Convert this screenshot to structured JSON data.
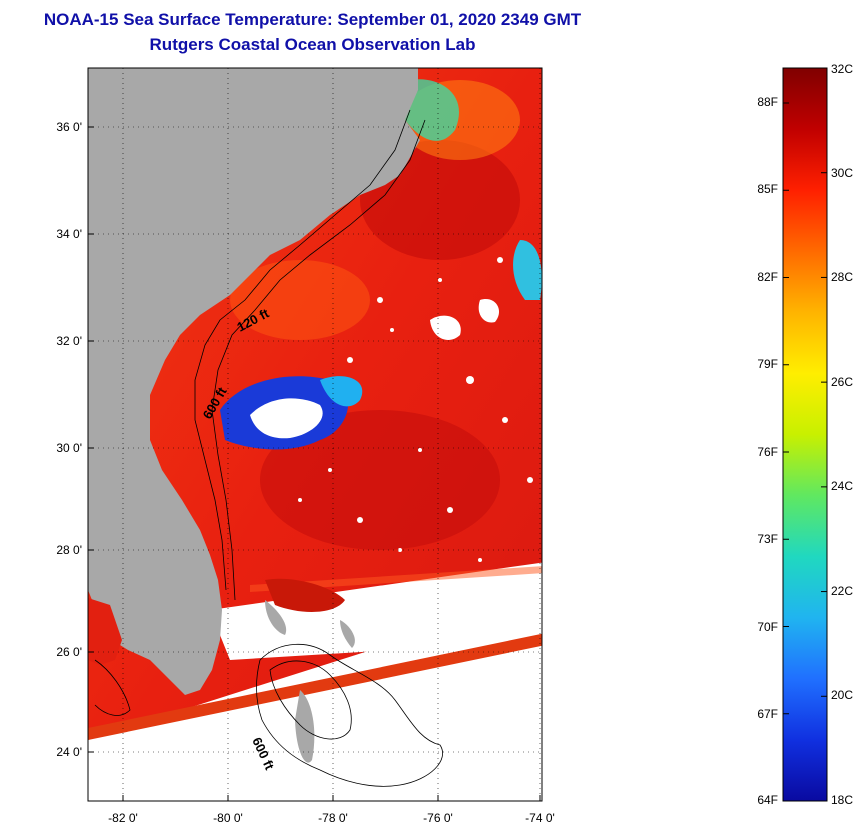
{
  "title": {
    "line1": "NOAA-15 Sea Surface Temperature:  September 01, 2020 2349 GMT",
    "line2": "Rutgers Coastal Ocean Observation Lab"
  },
  "map": {
    "lat_labels": [
      "36 0'",
      "34 0'",
      "32 0'",
      "30 0'",
      "28 0'",
      "26 0'",
      "24 0'"
    ],
    "lon_labels": [
      "-82 0'",
      "-80 0'",
      "-78 0'",
      "-76 0'",
      "-74 0'"
    ],
    "contour_labels": [
      "120 ft",
      "600 ft",
      "600 ft"
    ],
    "colors": {
      "land": "#a8a8a8",
      "warm_ocean": "#f02810",
      "hot_ocean": "#c80a0a",
      "cool_ocean": "#0a32d0",
      "cloud": "#ffffff"
    }
  },
  "colorbar": {
    "celsius_labels": [
      "32C",
      "30C",
      "28C",
      "26C",
      "24C",
      "22C",
      "20C",
      "18C"
    ],
    "fahrenheit_labels": [
      "88F",
      "85F",
      "82F",
      "79F",
      "76F",
      "73F",
      "70F",
      "67F",
      "64F"
    ],
    "stops": [
      "#800000",
      "#c00000",
      "#ff2000",
      "#ff6a00",
      "#ffb400",
      "#ffee00",
      "#c8f000",
      "#60e860",
      "#20d8c0",
      "#20b4f0",
      "#2070ff",
      "#1030e0",
      "#0a0aa0"
    ]
  }
}
